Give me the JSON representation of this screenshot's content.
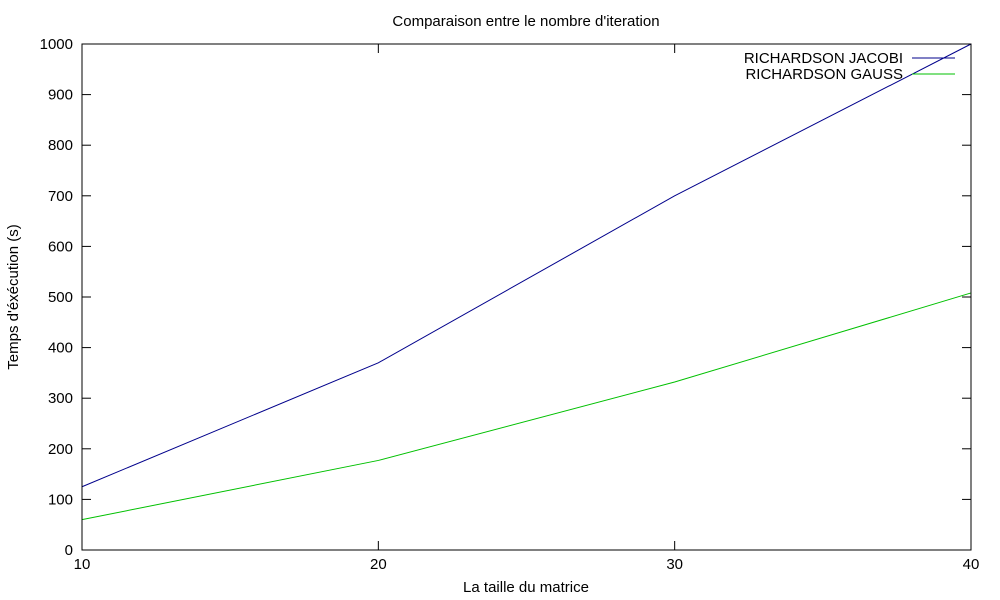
{
  "chart_data": {
    "type": "line",
    "title": "Comparaison entre le nombre d'iteration",
    "xlabel": "La taille du matrice",
    "ylabel": "Temps d'éxécution (s)",
    "x": [
      10,
      20,
      30,
      40
    ],
    "xlim": [
      10,
      40
    ],
    "ylim": [
      0,
      1000
    ],
    "x_ticks": [
      10,
      20,
      30,
      40
    ],
    "y_ticks": [
      0,
      100,
      200,
      300,
      400,
      500,
      600,
      700,
      800,
      900,
      1000
    ],
    "grid": false,
    "legend_position": "top-right",
    "series": [
      {
        "name": "RICHARDSON JACOBI",
        "color": "#00008b",
        "values": [
          125,
          370,
          700,
          1000
        ]
      },
      {
        "name": "RICHARDSON GAUSS",
        "color": "#00c000",
        "values": [
          60,
          177,
          332,
          508
        ]
      }
    ]
  }
}
